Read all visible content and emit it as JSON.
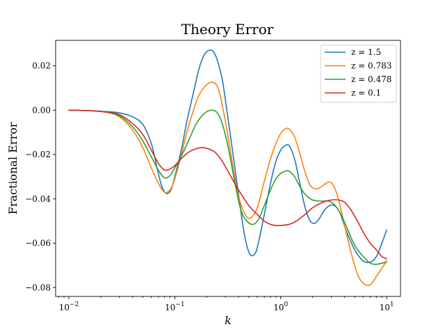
{
  "chart_data": {
    "type": "line",
    "title": "Theory Error",
    "xlabel": "k",
    "ylabel": "Fractional Error",
    "xscale": "log",
    "xlim": [
      0.0075,
      13.5
    ],
    "ylim": [
      -0.084,
      0.0315
    ],
    "grid": false,
    "legend_position": "top-right",
    "x_ticks": [
      {
        "value": 0.01,
        "base": "10",
        "exp": "−2"
      },
      {
        "value": 0.1,
        "base": "10",
        "exp": "−1"
      },
      {
        "value": 1,
        "base": "10",
        "exp": "0"
      },
      {
        "value": 10,
        "base": "10",
        "exp": "1"
      }
    ],
    "y_ticks": [
      {
        "value": 0.02,
        "label": "0.02"
      },
      {
        "value": 0.0,
        "label": "0.00"
      },
      {
        "value": -0.02,
        "label": "−0.02"
      },
      {
        "value": -0.04,
        "label": "−0.04"
      },
      {
        "value": -0.06,
        "label": "−0.06"
      },
      {
        "value": -0.08,
        "label": "−0.08"
      }
    ],
    "series": [
      {
        "name": "z = 1.5",
        "color": "#1f77b4",
        "points": [
          [
            0.01,
            0.0
          ],
          [
            0.015,
            -0.0002
          ],
          [
            0.022,
            -0.0006
          ],
          [
            0.03,
            -0.0012
          ],
          [
            0.04,
            -0.003
          ],
          [
            0.05,
            -0.0065
          ],
          [
            0.06,
            -0.015
          ],
          [
            0.068,
            -0.026
          ],
          [
            0.075,
            -0.034
          ],
          [
            0.083,
            -0.0375
          ],
          [
            0.092,
            -0.036
          ],
          [
            0.1,
            -0.03
          ],
          [
            0.115,
            -0.018
          ],
          [
            0.13,
            -0.005
          ],
          [
            0.15,
            0.008
          ],
          [
            0.17,
            0.019
          ],
          [
            0.19,
            0.025
          ],
          [
            0.21,
            0.027
          ],
          [
            0.23,
            0.0265
          ],
          [
            0.25,
            0.023
          ],
          [
            0.28,
            0.014
          ],
          [
            0.31,
            0.0
          ],
          [
            0.35,
            -0.018
          ],
          [
            0.4,
            -0.038
          ],
          [
            0.45,
            -0.055
          ],
          [
            0.5,
            -0.064
          ],
          [
            0.55,
            -0.0655
          ],
          [
            0.6,
            -0.062
          ],
          [
            0.7,
            -0.047
          ],
          [
            0.8,
            -0.033
          ],
          [
            0.9,
            -0.023
          ],
          [
            1.0,
            -0.018
          ],
          [
            1.1,
            -0.016
          ],
          [
            1.2,
            -0.016
          ],
          [
            1.35,
            -0.022
          ],
          [
            1.5,
            -0.032
          ],
          [
            1.7,
            -0.044
          ],
          [
            1.9,
            -0.05
          ],
          [
            2.1,
            -0.051
          ],
          [
            2.3,
            -0.049
          ],
          [
            2.6,
            -0.045
          ],
          [
            2.9,
            -0.043
          ],
          [
            3.2,
            -0.043
          ],
          [
            3.6,
            -0.046
          ],
          [
            4.2,
            -0.055
          ],
          [
            5.0,
            -0.063
          ],
          [
            6.0,
            -0.068
          ],
          [
            7.0,
            -0.0685
          ],
          [
            8.0,
            -0.066
          ],
          [
            9.0,
            -0.06
          ],
          [
            10.0,
            -0.054
          ]
        ]
      },
      {
        "name": "z = 0.783",
        "color": "#ff7f0e",
        "points": [
          [
            0.01,
            0.0
          ],
          [
            0.015,
            -0.0002
          ],
          [
            0.022,
            -0.0008
          ],
          [
            0.03,
            -0.003
          ],
          [
            0.04,
            -0.009
          ],
          [
            0.05,
            -0.017
          ],
          [
            0.06,
            -0.026
          ],
          [
            0.07,
            -0.033
          ],
          [
            0.078,
            -0.0365
          ],
          [
            0.085,
            -0.037
          ],
          [
            0.095,
            -0.034
          ],
          [
            0.11,
            -0.024
          ],
          [
            0.13,
            -0.01
          ],
          [
            0.15,
            0.0
          ],
          [
            0.17,
            0.007
          ],
          [
            0.2,
            0.0115
          ],
          [
            0.23,
            0.0125
          ],
          [
            0.26,
            0.009
          ],
          [
            0.3,
            -0.005
          ],
          [
            0.35,
            -0.024
          ],
          [
            0.4,
            -0.039
          ],
          [
            0.46,
            -0.047
          ],
          [
            0.52,
            -0.0485
          ],
          [
            0.6,
            -0.044
          ],
          [
            0.7,
            -0.032
          ],
          [
            0.8,
            -0.022
          ],
          [
            0.9,
            -0.015
          ],
          [
            1.0,
            -0.0105
          ],
          [
            1.1,
            -0.0085
          ],
          [
            1.2,
            -0.0085
          ],
          [
            1.35,
            -0.012
          ],
          [
            1.5,
            -0.019
          ],
          [
            1.7,
            -0.028
          ],
          [
            1.9,
            -0.034
          ],
          [
            2.2,
            -0.0355
          ],
          [
            2.5,
            -0.034
          ],
          [
            2.8,
            -0.0325
          ],
          [
            3.1,
            -0.0335
          ],
          [
            3.5,
            -0.04
          ],
          [
            4.0,
            -0.052
          ],
          [
            4.6,
            -0.064
          ],
          [
            5.3,
            -0.074
          ],
          [
            6.0,
            -0.078
          ],
          [
            6.8,
            -0.079
          ],
          [
            7.5,
            -0.077
          ],
          [
            8.5,
            -0.073
          ],
          [
            10.0,
            -0.068
          ]
        ]
      },
      {
        "name": "z = 0.478",
        "color": "#2ca02c",
        "points": [
          [
            0.01,
            0.0
          ],
          [
            0.015,
            -0.0002
          ],
          [
            0.022,
            -0.0008
          ],
          [
            0.03,
            -0.0025
          ],
          [
            0.04,
            -0.0075
          ],
          [
            0.05,
            -0.014
          ],
          [
            0.06,
            -0.021
          ],
          [
            0.07,
            -0.027
          ],
          [
            0.08,
            -0.0305
          ],
          [
            0.09,
            -0.0295
          ],
          [
            0.1,
            -0.026
          ],
          [
            0.12,
            -0.019
          ],
          [
            0.14,
            -0.012
          ],
          [
            0.16,
            -0.006
          ],
          [
            0.19,
            -0.0015
          ],
          [
            0.22,
            0.0
          ],
          [
            0.25,
            -0.001
          ],
          [
            0.28,
            -0.006
          ],
          [
            0.32,
            -0.017
          ],
          [
            0.37,
            -0.033
          ],
          [
            0.42,
            -0.045
          ],
          [
            0.48,
            -0.05
          ],
          [
            0.55,
            -0.0515
          ],
          [
            0.62,
            -0.049
          ],
          [
            0.7,
            -0.043
          ],
          [
            0.8,
            -0.036
          ],
          [
            0.9,
            -0.031
          ],
          [
            1.0,
            -0.0285
          ],
          [
            1.1,
            -0.0275
          ],
          [
            1.2,
            -0.0275
          ],
          [
            1.35,
            -0.03
          ],
          [
            1.5,
            -0.034
          ],
          [
            1.7,
            -0.038
          ],
          [
            2.0,
            -0.0405
          ],
          [
            2.4,
            -0.041
          ],
          [
            2.8,
            -0.041
          ],
          [
            3.2,
            -0.0425
          ],
          [
            3.7,
            -0.047
          ],
          [
            4.3,
            -0.054
          ],
          [
            5.0,
            -0.061
          ],
          [
            6.0,
            -0.066
          ],
          [
            7.0,
            -0.069
          ],
          [
            8.0,
            -0.0695
          ],
          [
            9.0,
            -0.069
          ],
          [
            10.0,
            -0.0685
          ]
        ]
      },
      {
        "name": "z = 0.1",
        "color": "#d62728",
        "points": [
          [
            0.01,
            0.0
          ],
          [
            0.015,
            -0.0002
          ],
          [
            0.022,
            -0.0008
          ],
          [
            0.03,
            -0.002
          ],
          [
            0.04,
            -0.006
          ],
          [
            0.05,
            -0.011
          ],
          [
            0.06,
            -0.018
          ],
          [
            0.07,
            -0.024
          ],
          [
            0.08,
            -0.027
          ],
          [
            0.09,
            -0.0265
          ],
          [
            0.1,
            -0.025
          ],
          [
            0.12,
            -0.021
          ],
          [
            0.14,
            -0.0185
          ],
          [
            0.17,
            -0.017
          ],
          [
            0.2,
            -0.0172
          ],
          [
            0.24,
            -0.019
          ],
          [
            0.28,
            -0.023
          ],
          [
            0.33,
            -0.029
          ],
          [
            0.4,
            -0.036
          ],
          [
            0.5,
            -0.043
          ],
          [
            0.6,
            -0.047
          ],
          [
            0.7,
            -0.05
          ],
          [
            0.8,
            -0.0515
          ],
          [
            0.9,
            -0.052
          ],
          [
            1.0,
            -0.052
          ],
          [
            1.2,
            -0.0515
          ],
          [
            1.4,
            -0.05
          ],
          [
            1.7,
            -0.047
          ],
          [
            2.0,
            -0.044
          ],
          [
            2.5,
            -0.0415
          ],
          [
            3.0,
            -0.0405
          ],
          [
            3.5,
            -0.0405
          ],
          [
            4.0,
            -0.0415
          ],
          [
            4.6,
            -0.045
          ],
          [
            5.3,
            -0.05
          ],
          [
            6.0,
            -0.055
          ],
          [
            7.0,
            -0.06
          ],
          [
            8.0,
            -0.063
          ],
          [
            9.0,
            -0.066
          ],
          [
            10.0,
            -0.067
          ]
        ]
      }
    ]
  }
}
